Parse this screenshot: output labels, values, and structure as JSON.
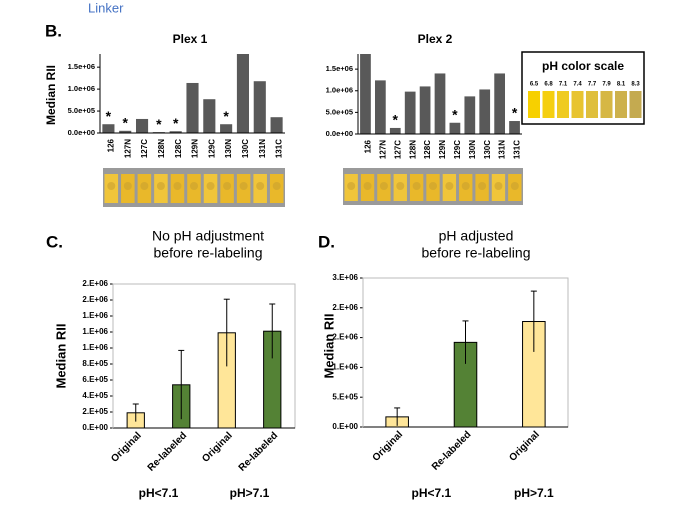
{
  "header": {
    "link": "Linker",
    "panel_b": "B.",
    "panel_c": "C.",
    "panel_d": "D."
  },
  "ph_scale": {
    "title": "pH color scale",
    "values": [
      "6.5",
      "6.8",
      "7.1",
      "7.4",
      "7.7",
      "7.9",
      "8.1",
      "8.3"
    ]
  },
  "chart_data": [
    {
      "type": "bar",
      "title": [
        "Plex 1"
      ],
      "y_label": "Median RII",
      "categories": [
        "126",
        "127N",
        "127C",
        "128N",
        "128C",
        "129N",
        "129C",
        "130N",
        "130C",
        "131N",
        "131C"
      ],
      "values": [
        200000,
        50000,
        320000,
        20000,
        40000,
        1140000,
        770000,
        200000,
        1800000,
        1180000,
        360000
      ],
      "color": "#595959",
      "ylim": [
        0,
        1800000
      ],
      "yticks": [
        {
          "value": 0,
          "label": "0.0e+00"
        },
        {
          "value": 500000,
          "label": "5.0e+05"
        },
        {
          "value": 1000000,
          "label": "1.0e+06"
        },
        {
          "value": 1500000,
          "label": "1.5e+06"
        }
      ],
      "annotations": [
        {
          "text": "*",
          "category": "126"
        },
        {
          "text": "*",
          "category": "127N"
        },
        {
          "text": "*",
          "category": "128N"
        },
        {
          "text": "*",
          "category": "128C"
        },
        {
          "text": "*",
          "category": "130N"
        }
      ]
    },
    {
      "type": "bar",
      "title": [
        "Plex 2"
      ],
      "categories": [
        "126",
        "127N",
        "127C",
        "128N",
        "128C",
        "129N",
        "129C",
        "130N",
        "130C",
        "131N",
        "131C"
      ],
      "values": [
        1850000,
        1240000,
        140000,
        980000,
        1100000,
        1400000,
        260000,
        870000,
        1030000,
        1400000,
        300000
      ],
      "color": "#595959",
      "ylim": [
        0,
        1850000
      ],
      "yticks": [
        {
          "value": 0,
          "label": "0.0e+00"
        },
        {
          "value": 500000,
          "label": "5.0e+05"
        },
        {
          "value": 1000000,
          "label": "1.0e+06"
        },
        {
          "value": 1500000,
          "label": "1.5e+06"
        }
      ],
      "annotations": [
        {
          "text": "*",
          "category": "127C"
        },
        {
          "text": "*",
          "category": "129C"
        },
        {
          "text": "*",
          "category": "131C"
        }
      ]
    },
    {
      "type": "bar",
      "title": [
        "No pH adjustment",
        "before re-labeling"
      ],
      "y_label": "Median RII",
      "categories": [
        "Original",
        "Re-labeled",
        "Original",
        "Re-labeled"
      ],
      "values": [
        190000,
        540000,
        1190000,
        1210000
      ],
      "errors": [
        110000,
        430000,
        420000,
        340000
      ],
      "colors": [
        "#ffe699",
        "#548235",
        "#ffe699",
        "#548235"
      ],
      "group_labels": [
        "pH<7.1",
        "pH>7.1"
      ],
      "ylim": [
        0,
        1800000
      ],
      "yticks": [
        {
          "value": 0,
          "label": "0.E+00"
        },
        {
          "value": 200000,
          "label": "2.E+05"
        },
        {
          "value": 400000,
          "label": "4.E+05"
        },
        {
          "value": 600000,
          "label": "6.E+05"
        },
        {
          "value": 800000,
          "label": "8.E+05"
        },
        {
          "value": 1000000,
          "label": "1.E+06"
        },
        {
          "value": 1200000,
          "label": "1.E+06"
        },
        {
          "value": 1400000,
          "label": "1.E+06"
        },
        {
          "value": 1600000,
          "label": "2.E+06"
        },
        {
          "value": 1800000,
          "label": "2.E+06"
        }
      ]
    },
    {
      "type": "bar",
      "title": [
        "pH adjusted",
        "before re-labeling"
      ],
      "y_label": "Median RII",
      "categories": [
        "Original",
        "Re-labeled",
        "Original"
      ],
      "values": [
        170000,
        1420000,
        1770000
      ],
      "errors": [
        150000,
        360000,
        510000
      ],
      "colors": [
        "#ffe699",
        "#548235",
        "#ffe699"
      ],
      "group_labels": [
        "pH<7.1",
        "pH>7.1"
      ],
      "ylim": [
        0,
        2500000
      ],
      "yticks": [
        {
          "value": 0,
          "label": "0.E+00"
        },
        {
          "value": 500000,
          "label": "5.E+05"
        },
        {
          "value": 1000000,
          "label": "1.E+06"
        },
        {
          "value": 1500000,
          "label": "2.E+06"
        },
        {
          "value": 2000000,
          "label": "2.E+06"
        },
        {
          "value": 2500000,
          "label": "3.E+06"
        }
      ]
    }
  ]
}
